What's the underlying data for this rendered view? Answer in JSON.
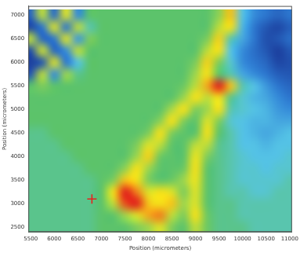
{
  "chart_data": {
    "type": "heatmap",
    "xlabel": "Position (micrometers)",
    "ylabel": "Position (micrometers)",
    "xlim": [
      5450,
      11050
    ],
    "ylim": [
      2400,
      7200
    ],
    "xticks": [
      5500,
      6000,
      6500,
      7000,
      7500,
      8000,
      8500,
      9000,
      9500,
      10000,
      10500,
      11000
    ],
    "yticks": [
      2500,
      3000,
      3500,
      4000,
      4500,
      5000,
      5500,
      6000,
      6500,
      7000
    ],
    "grid": false,
    "x": [
      5500,
      5750,
      6000,
      6250,
      6500,
      6750,
      7000,
      7250,
      7500,
      7750,
      8000,
      8250,
      8500,
      8750,
      9000,
      9250,
      9500,
      9750,
      10000,
      10250,
      10500,
      10750,
      11000
    ],
    "y": [
      7000,
      6750,
      6500,
      6250,
      6000,
      5750,
      5500,
      5250,
      5000,
      4750,
      4500,
      4250,
      4000,
      3750,
      3500,
      3250,
      3000,
      2750,
      2500
    ],
    "cells": [
      [
        0.8,
        2.6,
        0.9,
        2.8,
        1.2,
        2.0,
        2,
        2,
        2,
        2,
        2,
        2,
        2,
        2,
        2,
        2,
        2.3,
        3.2,
        1.6,
        1.2,
        1.0,
        0.8,
        1.0
      ],
      [
        0.4,
        1.0,
        2.8,
        1.0,
        2.6,
        1.8,
        2,
        2,
        2,
        2,
        2,
        2,
        2,
        2,
        2,
        2,
        2.6,
        3.0,
        1.5,
        1.0,
        0.6,
        0.4,
        0.7
      ],
      [
        2.6,
        0.8,
        1.0,
        2.8,
        1.3,
        2.2,
        2,
        2,
        2,
        2,
        2,
        2,
        2,
        2,
        2,
        2.2,
        3.1,
        1.8,
        1.4,
        1.0,
        0.5,
        0.6,
        0.9
      ],
      [
        0.5,
        2.7,
        0.8,
        1.2,
        2.6,
        2.0,
        2,
        2,
        2,
        2,
        2,
        2,
        2,
        2,
        2,
        2.6,
        3.0,
        1.6,
        1.2,
        0.9,
        0.6,
        0.3,
        0.6
      ],
      [
        0.3,
        0.6,
        2.8,
        1.0,
        1.6,
        2.0,
        2,
        2,
        2,
        2,
        2,
        2,
        2,
        2,
        2.2,
        3.1,
        2.2,
        1.7,
        1.2,
        1.0,
        0.8,
        0.4,
        0.5
      ],
      [
        0.6,
        2.6,
        1.2,
        2.4,
        1.9,
        2.0,
        2,
        2,
        2,
        2,
        2,
        2,
        2,
        2,
        2.4,
        3.0,
        2.0,
        1.8,
        1.4,
        1.2,
        1.0,
        0.7,
        0.6
      ],
      [
        2.0,
        2.2,
        2.0,
        2,
        2,
        2,
        2,
        2,
        2,
        2,
        2,
        2,
        2,
        2.1,
        2.6,
        3.4,
        4.0,
        3.2,
        1.8,
        1.6,
        1.3,
        1.0,
        0.8
      ],
      [
        2,
        2,
        2,
        2,
        2,
        2,
        2,
        2,
        2,
        2,
        2,
        2,
        2,
        2.4,
        3.0,
        2.6,
        3.0,
        1.9,
        1.7,
        1.5,
        1.4,
        1.2,
        1.0
      ],
      [
        2,
        2,
        2,
        2,
        2,
        2,
        2,
        2,
        2,
        2,
        2,
        2,
        2.5,
        3.0,
        2.2,
        2.4,
        3.0,
        1.8,
        1.7,
        1.6,
        1.5,
        1.3,
        1.2
      ],
      [
        2,
        2,
        2,
        2,
        2,
        2,
        2,
        2,
        2,
        2,
        2,
        2.3,
        3.0,
        2.2,
        2.0,
        2.8,
        2.2,
        1.7,
        1.6,
        1.5,
        1.5,
        1.4,
        1.4
      ],
      [
        1.9,
        1.9,
        2,
        2,
        2,
        2,
        2,
        2,
        2,
        2,
        2.2,
        3.0,
        2.2,
        2.0,
        2.0,
        3.0,
        2.0,
        1.8,
        1.6,
        1.5,
        1.4,
        1.5,
        1.6
      ],
      [
        1.9,
        1.9,
        1.9,
        2,
        2,
        2,
        2,
        2,
        2,
        2.2,
        2.8,
        2.6,
        2.0,
        2.0,
        2.6,
        2.6,
        1.9,
        1.8,
        1.6,
        1.6,
        1.5,
        1.6,
        1.6
      ],
      [
        1.9,
        1.9,
        1.9,
        1.9,
        2,
        2,
        2,
        2,
        2,
        2.4,
        3.1,
        2.1,
        2.0,
        2.0,
        2.9,
        2.2,
        1.9,
        1.8,
        1.7,
        1.6,
        1.6,
        1.6,
        1.7
      ],
      [
        1.9,
        1.9,
        1.9,
        1.9,
        1.9,
        2,
        2,
        2,
        2.3,
        3.0,
        2.4,
        2.0,
        2.0,
        2.1,
        3.0,
        2.0,
        1.9,
        1.8,
        1.7,
        1.7,
        1.6,
        1.7,
        1.7
      ],
      [
        1.9,
        1.9,
        1.9,
        1.9,
        1.9,
        1.9,
        2,
        2.2,
        3.2,
        3.0,
        2.2,
        2.0,
        2.1,
        2.4,
        2.9,
        2.0,
        1.9,
        1.8,
        1.7,
        1.7,
        1.7,
        1.7,
        1.8
      ],
      [
        1.9,
        1.9,
        1.9,
        1.9,
        1.9,
        1.9,
        2,
        3.0,
        4.0,
        3.6,
        2.8,
        3.0,
        2.8,
        2.2,
        2.8,
        2.0,
        1.9,
        1.8,
        1.8,
        1.7,
        1.7,
        1.8,
        1.8
      ],
      [
        1.9,
        1.9,
        1.9,
        1.9,
        1.9,
        1.9,
        2,
        2.6,
        3.8,
        4.0,
        3.2,
        3.0,
        3.2,
        2.4,
        2.8,
        2.0,
        1.9,
        1.9,
        1.8,
        1.8,
        1.8,
        1.8,
        1.8
      ],
      [
        1.9,
        1.9,
        1.9,
        1.9,
        1.9,
        1.9,
        2,
        2.0,
        2.4,
        2.8,
        3.4,
        3.6,
        2.6,
        2.2,
        3.0,
        2.1,
        1.9,
        1.9,
        1.8,
        1.8,
        1.8,
        1.8,
        1.8
      ],
      [
        1.9,
        1.9,
        1.9,
        1.9,
        1.9,
        1.9,
        2,
        2,
        2.0,
        2.2,
        2.4,
        2.8,
        2.2,
        2.0,
        2.6,
        2.1,
        1.9,
        1.9,
        1.9,
        1.8,
        1.8,
        1.8,
        1.8
      ]
    ],
    "series": [
      {
        "type": "scatter",
        "marker": "cross",
        "color": "#e8201c",
        "x": [
          6800
        ],
        "values": [
          3100
        ]
      }
    ]
  }
}
